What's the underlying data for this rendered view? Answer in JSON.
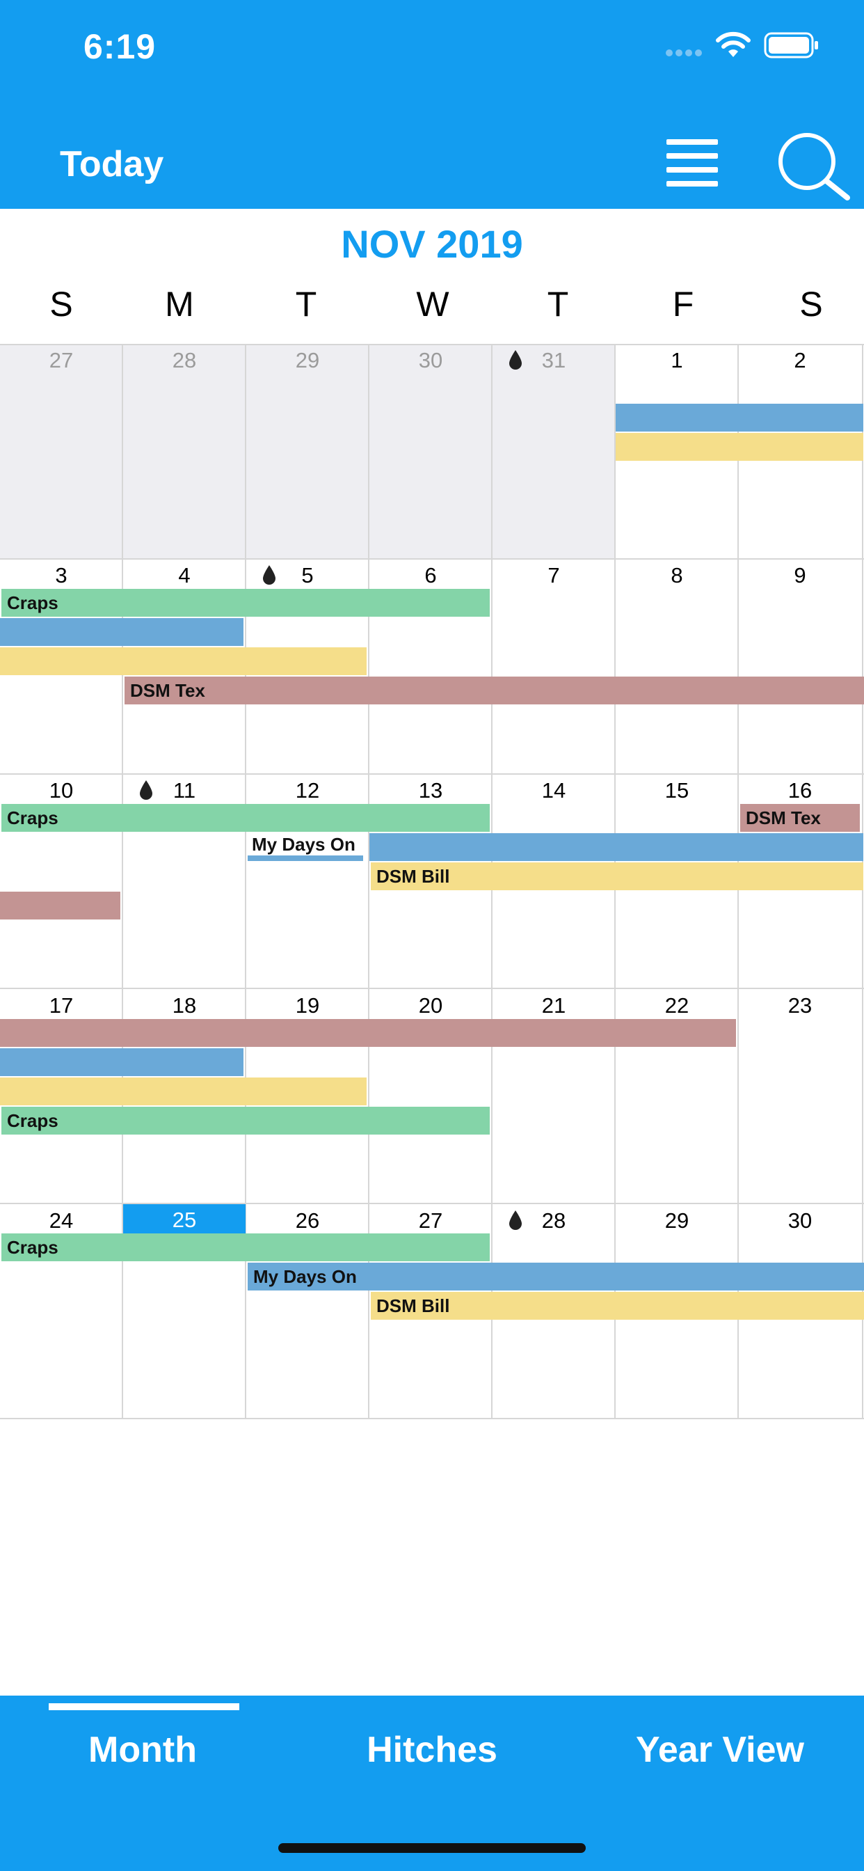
{
  "status": {
    "time": "6:19"
  },
  "header": {
    "today_label": "Today"
  },
  "calendar": {
    "month_title": "NOV 2019",
    "weekdays": [
      "S",
      "M",
      "T",
      "W",
      "T",
      "F",
      "S"
    ],
    "weeks": [
      [
        "27",
        "28",
        "29",
        "30",
        "31",
        "1",
        "2"
      ],
      [
        "3",
        "4",
        "5",
        "6",
        "7",
        "8",
        "9"
      ],
      [
        "10",
        "11",
        "12",
        "13",
        "14",
        "15",
        "16"
      ],
      [
        "17",
        "18",
        "19",
        "20",
        "21",
        "22",
        "23"
      ],
      [
        "24",
        "25",
        "26",
        "27",
        "28",
        "29",
        "30"
      ]
    ],
    "today": "25",
    "event_labels": {
      "craps": "Craps",
      "dsm_tex": "DSM Tex",
      "my_days_on": "My Days On",
      "dsm_bill": "DSM Bill"
    }
  },
  "colors": {
    "brand": "#139df0",
    "event_green": "#84d4a8",
    "event_blue": "#6aa9d8",
    "event_yellow": "#f5de8a",
    "event_rose": "#c39493"
  },
  "tabs": {
    "month": "Month",
    "hitches": "Hitches",
    "year_view": "Year View"
  }
}
